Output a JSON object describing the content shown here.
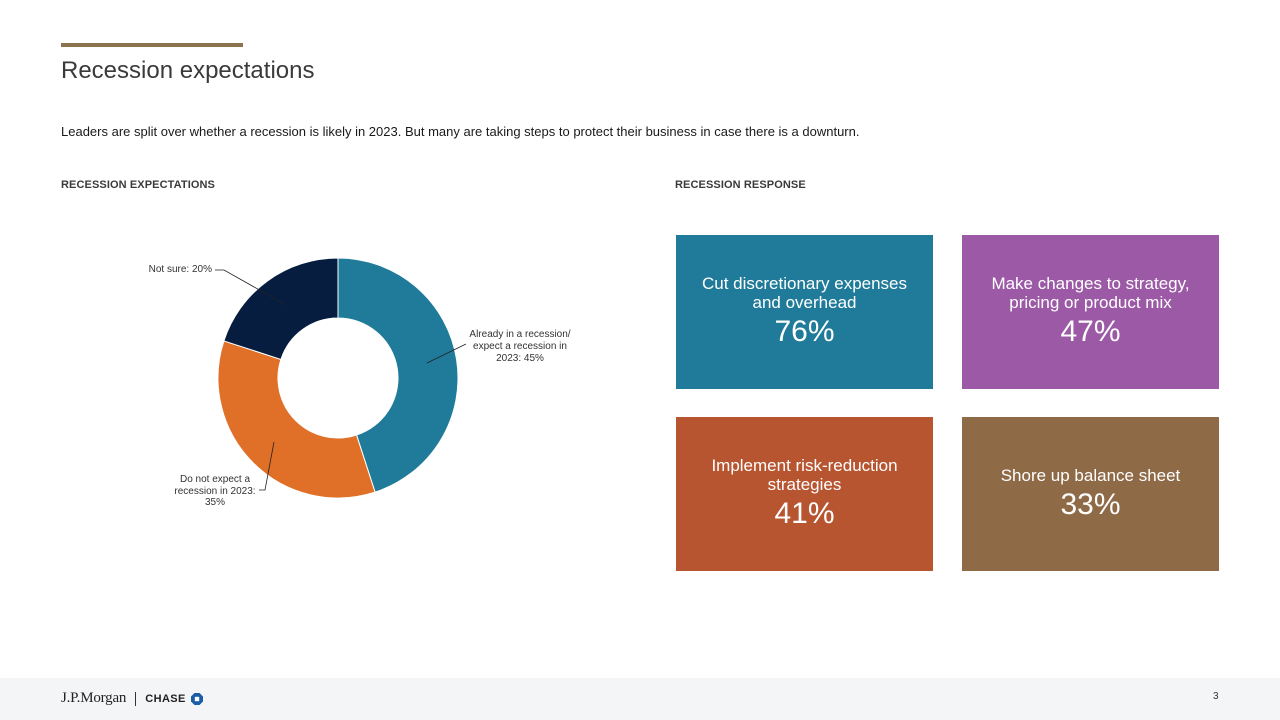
{
  "page": {
    "title": "Recession expectations",
    "subtitle": "Leaders are split over whether a recession is likely in 2023. But many are taking steps to protect their business in case there is a downturn.",
    "page_number": "3"
  },
  "sections": {
    "left_heading": "RECESSION EXPECTATIONS",
    "right_heading": "RECESSION RESPONSE"
  },
  "footer": {
    "logo_jpm": "J.P.Morgan",
    "logo_chase": "CHASE"
  },
  "chart_data": [
    {
      "type": "pie",
      "donut": true,
      "title": "RECESSION EXPECTATIONS",
      "categories": [
        "Already in a recession/ expect a recession in 2023",
        "Do not expect a recession in 2023",
        "Not sure"
      ],
      "values": [
        45,
        35,
        20
      ],
      "unit": "%",
      "colors": [
        "#1f7b99",
        "#e07028",
        "#061d40"
      ],
      "slice_labels": [
        [
          "Already in a recession/",
          "expect a recession in",
          "2023: 45%"
        ],
        [
          "Do not expect a",
          "recession in 2023:",
          "35%"
        ],
        [
          "Not sure: 20%"
        ]
      ]
    },
    {
      "type": "table",
      "title": "RECESSION RESPONSE",
      "categories": [
        "Cut discretionary expenses and overhead",
        "Make changes to strategy, pricing or product mix",
        "Implement risk-reduction strategies",
        "Shore up balance sheet"
      ],
      "values": [
        76,
        47,
        41,
        33
      ],
      "unit": "%",
      "labels": [
        "76%",
        "47%",
        "41%",
        "33%"
      ],
      "colors": [
        "#1f7b99",
        "#9b59a6",
        "#b85531",
        "#8f6a47"
      ]
    }
  ]
}
